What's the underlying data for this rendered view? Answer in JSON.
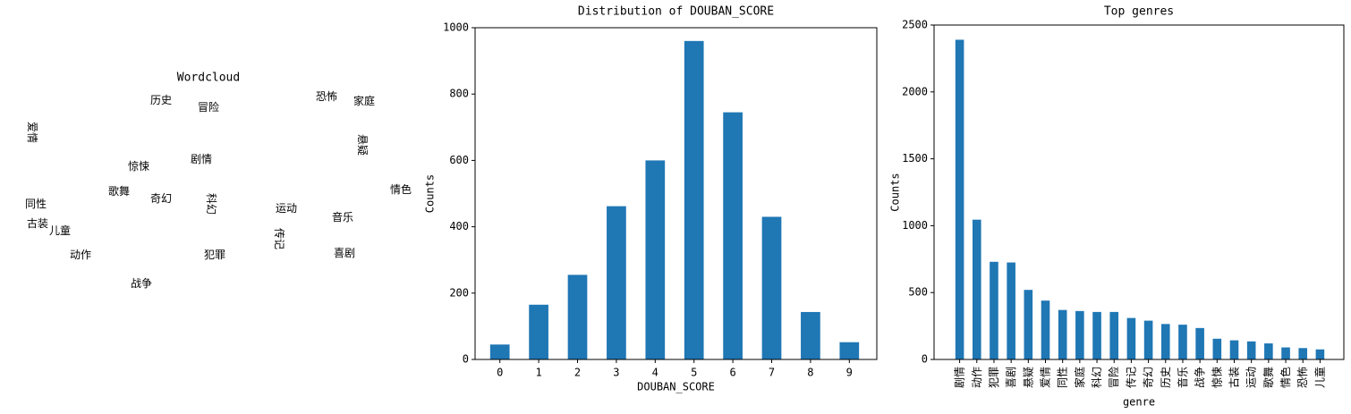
{
  "chart_data": [
    {
      "type": "wordcloud",
      "title": "Wordcloud",
      "words": [
        "剧情",
        "动作",
        "犯罪",
        "喜剧",
        "悬疑",
        "爱情",
        "同性",
        "家庭",
        "科幻",
        "冒险",
        "历史",
        "惊悚",
        "奇幻",
        "歌舞",
        "古装",
        "音乐",
        "传记",
        "运动",
        "战争",
        "情色",
        "恐怖",
        "儿童"
      ],
      "colors": [
        "#a0da39",
        "#3b528b",
        "#4ac16d",
        "#46337e",
        "#482576",
        "#3e4a89",
        "#21918c",
        "#3b528b",
        "#2c728e",
        "#443983",
        "#414487",
        "#433e85",
        "#31688e",
        "#a5db36",
        "#bddf26",
        "#355f8d",
        "#443a83",
        "#22a884",
        "#482878",
        "#2a788e",
        "#5ec962",
        "#404688"
      ]
    },
    {
      "type": "bar",
      "title": "Distribution of DOUBAN_SCORE",
      "xlabel": "DOUBAN_SCORE",
      "ylabel": "Counts",
      "categories": [
        "0",
        "1",
        "2",
        "3",
        "4",
        "5",
        "6",
        "7",
        "8",
        "9"
      ],
      "values": [
        45,
        165,
        255,
        462,
        600,
        960,
        745,
        430,
        143,
        52
      ],
      "color": "#1f77b4",
      "ylim": [
        0,
        1000
      ],
      "yticks": [
        0,
        200,
        400,
        600,
        800,
        1000
      ]
    },
    {
      "type": "bar",
      "title": "Top genres",
      "xlabel": "genre",
      "ylabel": "Counts",
      "rotate_labels": true,
      "categories": [
        "剧情",
        "动作",
        "犯罪",
        "喜剧",
        "悬疑",
        "爱情",
        "同性",
        "家庭",
        "科幻",
        "冒险",
        "传记",
        "奇幻",
        "历史",
        "音乐",
        "战争",
        "惊悚",
        "古装",
        "运动",
        "歌舞",
        "情色",
        "恐怖",
        "儿童"
      ],
      "values": [
        2390,
        1045,
        730,
        725,
        520,
        440,
        370,
        362,
        355,
        355,
        310,
        290,
        265,
        260,
        235,
        155,
        143,
        135,
        120,
        90,
        85,
        75
      ],
      "color": "#1f77b4",
      "ylim": [
        0,
        2500
      ],
      "yticks": [
        0,
        500,
        1000,
        1500,
        2000,
        2500
      ]
    }
  ]
}
